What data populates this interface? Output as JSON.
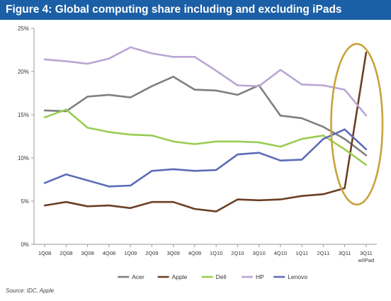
{
  "chart_data": {
    "type": "line",
    "title": "Figure 4: Global computing share including and excluding iPads",
    "xlabel": "",
    "ylabel": "",
    "categories": [
      "1Q08",
      "2Q08",
      "3Q08",
      "4Q08",
      "1Q09",
      "2Q09",
      "3Q09",
      "4Q09",
      "1Q10",
      "2Q10",
      "3Q10",
      "4Q10",
      "1Q11",
      "2Q11",
      "3Q11",
      "3Q11 w/iPad"
    ],
    "ylim": [
      0,
      25
    ],
    "yticks": [
      "0%",
      "5%",
      "10%",
      "15%",
      "20%",
      "25%"
    ],
    "grid": false,
    "legend_position": "bottom",
    "series": [
      {
        "name": "Acer",
        "color": "#7f7f7f",
        "values": [
          15.5,
          15.4,
          17.1,
          17.3,
          17.0,
          18.3,
          19.4,
          17.9,
          17.8,
          17.3,
          18.4,
          14.9,
          14.6,
          13.6,
          12.2,
          10.3
        ]
      },
      {
        "name": "Apple",
        "color": "#6b3f24",
        "values": [
          4.5,
          4.9,
          4.4,
          4.5,
          4.2,
          4.9,
          4.9,
          4.1,
          3.8,
          5.2,
          5.1,
          5.2,
          5.6,
          5.8,
          6.5,
          22.2
        ]
      },
      {
        "name": "Dell",
        "color": "#99cc52",
        "values": [
          14.7,
          15.6,
          13.5,
          13.0,
          12.7,
          12.6,
          11.9,
          11.6,
          11.9,
          11.9,
          11.8,
          11.3,
          12.2,
          12.6,
          11.0,
          9.2
        ]
      },
      {
        "name": "HP",
        "color": "#b9a6d3",
        "values": [
          21.4,
          21.2,
          20.9,
          21.5,
          22.8,
          22.1,
          21.7,
          21.7,
          20.1,
          18.4,
          18.3,
          20.2,
          18.5,
          18.4,
          17.9,
          14.9
        ]
      },
      {
        "name": "Lenovo",
        "color": "#5b6cb6",
        "values": [
          7.1,
          8.1,
          7.4,
          6.7,
          6.8,
          8.5,
          8.7,
          8.5,
          8.6,
          10.4,
          10.6,
          9.7,
          9.8,
          12.2,
          13.3,
          11.0
        ]
      }
    ],
    "annotation": {
      "type": "ellipse",
      "color": "#c8a23c",
      "around_categories": [
        "3Q11",
        "3Q11 w/iPad"
      ]
    }
  },
  "source_text": "Source: IDC, Apple"
}
